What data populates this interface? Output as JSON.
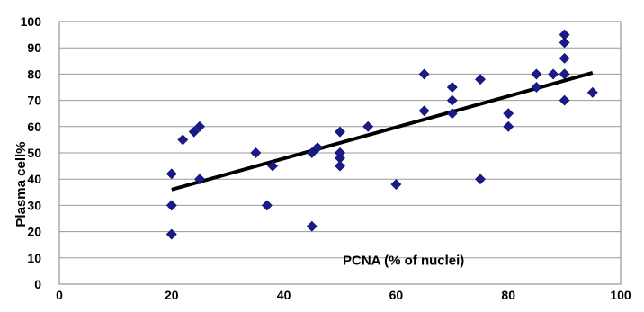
{
  "chart_data": {
    "type": "scatter",
    "title": "",
    "xlabel": "PCNA  (% of nuclei)",
    "ylabel": "Plasma cell%",
    "xlim": [
      0,
      100
    ],
    "ylim": [
      0,
      100
    ],
    "x_ticks": [
      "0",
      "20",
      "40",
      "60",
      "80",
      "100"
    ],
    "y_ticks": [
      "0",
      "10",
      "20",
      "30",
      "40",
      "50",
      "60",
      "70",
      "80",
      "90",
      "100"
    ],
    "grid": "horizontal",
    "legend": "none",
    "marker": "diamond",
    "colors": {
      "points": "#1a1a8c",
      "trendline": "#000000",
      "grid": "#9a9a9a",
      "axis": "#808080"
    },
    "series": [
      {
        "x": [
          20,
          20,
          20,
          22,
          24,
          25,
          25,
          35,
          37,
          38,
          45,
          45,
          46,
          50,
          50,
          50,
          50,
          50,
          55,
          60,
          65,
          65,
          70,
          70,
          70,
          75,
          75,
          80,
          80,
          85,
          85,
          88,
          90,
          90,
          90,
          90,
          90,
          90,
          95
        ],
        "y": [
          42,
          30,
          19,
          55,
          58,
          60,
          40,
          50,
          30,
          45,
          50,
          22,
          52,
          58,
          50,
          48,
          45,
          50,
          60,
          38,
          80,
          66,
          75,
          70,
          65,
          78,
          40,
          65,
          60,
          80,
          75,
          80,
          95,
          92,
          86,
          80,
          70,
          80,
          73
        ]
      }
    ],
    "trendline": {
      "x": [
        20,
        95
      ],
      "y": [
        36,
        80.5
      ]
    }
  }
}
